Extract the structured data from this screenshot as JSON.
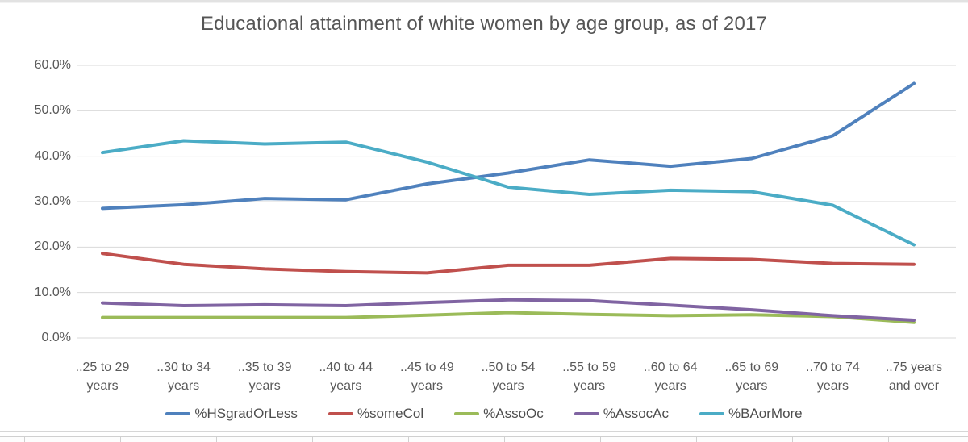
{
  "title": "Educational attainment of white women by age group, as of 2017",
  "colors": {
    "title_text": "#555555",
    "axis_text": "#595959",
    "gridline": "#d9d9d9",
    "series_blue": "#4f81bd",
    "series_red": "#c0504d",
    "series_green": "#9bbb59",
    "series_purple": "#8064a2",
    "series_cyan": "#4bacc6"
  },
  "chart_data": {
    "type": "line",
    "title": "Educational attainment of white women by age group, as of 2017",
    "categories": [
      "..25 to 29 years",
      "..30 to 34 years",
      "..35 to 39 years",
      "..40 to 44 years",
      "..45 to 49 years",
      "..50 to 54 years",
      "..55 to 59 years",
      "..60 to 64 years",
      "..65 to 69 years",
      "..70 to 74 years",
      "..75 years and over"
    ],
    "categories_display": [
      [
        "..25 to 29",
        "years"
      ],
      [
        "..30 to 34",
        "years"
      ],
      [
        "..35 to 39",
        "years"
      ],
      [
        "..40 to 44",
        "years"
      ],
      [
        "..45 to 49",
        "years"
      ],
      [
        "..50 to 54",
        "years"
      ],
      [
        "..55 to 59",
        "years"
      ],
      [
        "..60 to 64",
        "years"
      ],
      [
        "..65 to 69",
        "years"
      ],
      [
        "..70 to 74",
        "years"
      ],
      [
        "..75 years",
        "and over"
      ]
    ],
    "y_tick_labels": [
      "60.0%",
      "50.0%",
      "40.0%",
      "30.0%",
      "20.0%",
      "10.0%",
      "0.0%"
    ],
    "ylim": [
      0,
      60
    ],
    "y_step": 10,
    "grid": true,
    "legend_position": "bottom",
    "series": [
      {
        "name": "%HSgradOrLess",
        "color": "#4f81bd",
        "values": [
          28.5,
          29.3,
          30.7,
          30.4,
          33.9,
          36.3,
          39.2,
          37.8,
          39.5,
          44.5,
          56.0
        ]
      },
      {
        "name": "%someCol",
        "color": "#c0504d",
        "values": [
          18.6,
          16.2,
          15.2,
          14.6,
          14.3,
          16.0,
          16.0,
          17.5,
          17.3,
          16.4,
          16.2
        ]
      },
      {
        "name": "%AssoOc",
        "color": "#9bbb59",
        "values": [
          4.5,
          4.5,
          4.5,
          4.5,
          5.0,
          5.6,
          5.2,
          4.9,
          5.1,
          4.7,
          3.4
        ]
      },
      {
        "name": "%AssocAc",
        "color": "#8064a2",
        "values": [
          7.7,
          7.1,
          7.3,
          7.1,
          7.8,
          8.4,
          8.2,
          7.2,
          6.2,
          4.9,
          3.9
        ]
      },
      {
        "name": "%BAorMore",
        "color": "#4bacc6",
        "values": [
          40.8,
          43.4,
          42.7,
          43.1,
          38.7,
          33.2,
          31.6,
          32.5,
          32.2,
          29.2,
          20.5
        ]
      }
    ]
  }
}
